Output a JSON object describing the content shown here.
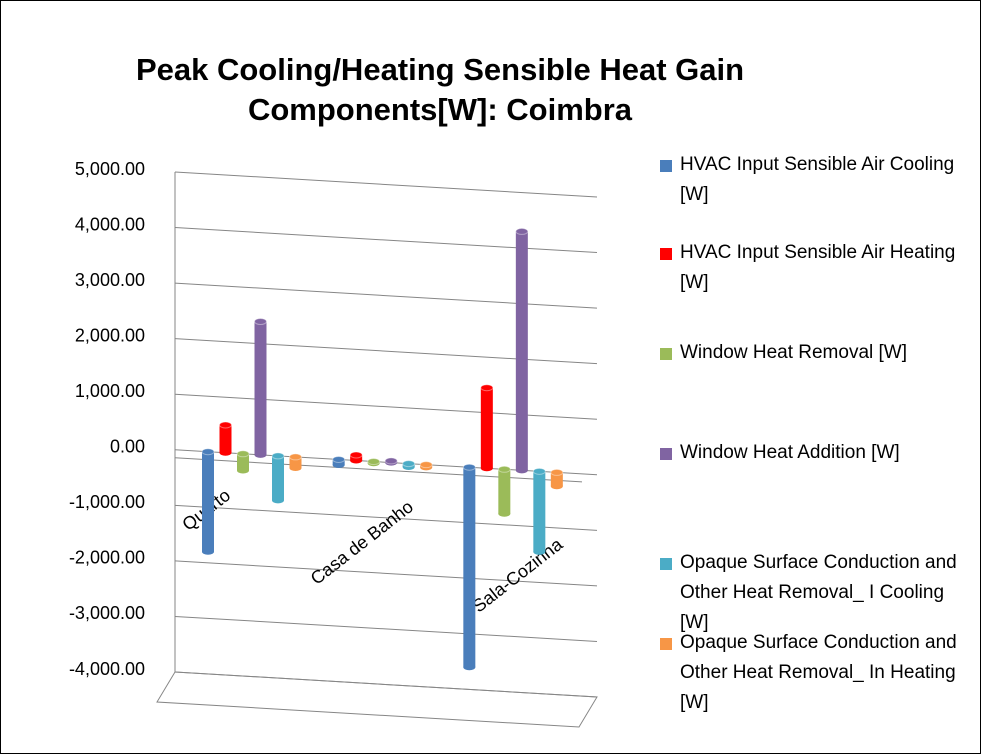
{
  "chart_data": {
    "type": "bar3d",
    "title": "Peak Cooling/Heating Sensible Heat Gain Components[W]: Coimbra",
    "categories": [
      "Quarto",
      "Casa de Banho",
      "Sala-Cozinha"
    ],
    "series": [
      {
        "name": "HVAC Input Sensible Air Cooling [W]",
        "color": "#4a7ebb",
        "values": [
          -1800,
          -100,
          -3600
        ]
      },
      {
        "name": "HVAC Input Sensible Air Heating [W]",
        "color": "#ff0000",
        "values": [
          500,
          100,
          1450
        ]
      },
      {
        "name": "Window Heat Removal [W]",
        "color": "#9bbb59",
        "values": [
          -300,
          -30,
          -800
        ]
      },
      {
        "name": "Window Heat Addition [W]",
        "color": "#8064a2",
        "values": [
          2400,
          30,
          4300
        ]
      },
      {
        "name": "Opaque Surface Conduction and Other Heat Removal_ I  Cooling [W]",
        "color": "#4bacc6",
        "values": [
          -800,
          -60,
          -1450
        ]
      },
      {
        "name": "Opaque Surface Conduction and Other Heat Removal_ In Heating [W]",
        "color": "#f79646",
        "values": [
          -200,
          -50,
          -250
        ]
      }
    ],
    "ylim": [
      -4000,
      5000
    ],
    "yticks": [
      {
        "value": 5000,
        "label": "5,000.00"
      },
      {
        "value": 4000,
        "label": "4,000.00"
      },
      {
        "value": 3000,
        "label": "3,000.00"
      },
      {
        "value": 2000,
        "label": "2,000.00"
      },
      {
        "value": 1000,
        "label": "1,000.00"
      },
      {
        "value": 0,
        "label": "0.00"
      },
      {
        "value": -1000,
        "label": "-1,000.00"
      },
      {
        "value": -2000,
        "label": "-2,000.00"
      },
      {
        "value": -3000,
        "label": "-3,000.00"
      },
      {
        "value": -4000,
        "label": "-4,000.00"
      }
    ],
    "grid": true
  }
}
